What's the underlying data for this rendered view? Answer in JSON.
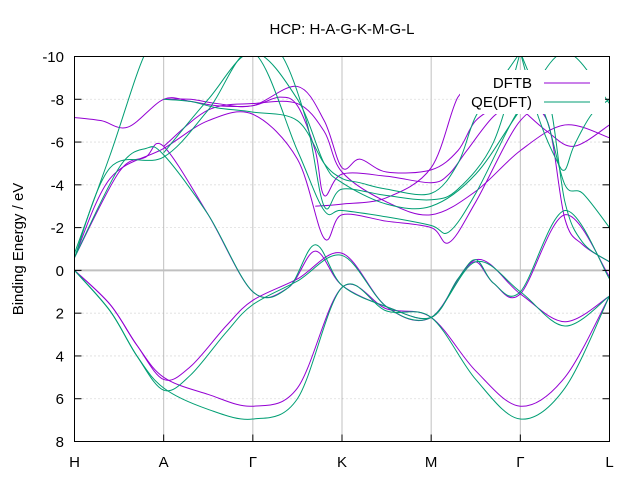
{
  "chart_data": {
    "type": "line",
    "title": "HCP: H-A-G-K-M-G-L",
    "xlabel": "",
    "ylabel": "Binding Energy / eV",
    "ylim": [
      8,
      -10
    ],
    "y_ticks": [
      -10,
      -8,
      -6,
      -4,
      -2,
      0,
      2,
      4,
      6,
      8
    ],
    "x_ticks": [
      {
        "label": "H",
        "x": 0
      },
      {
        "label": "A",
        "x": 1
      },
      {
        "label": "Γ",
        "x": 2
      },
      {
        "label": "K",
        "x": 3
      },
      {
        "label": "M",
        "x": 4
      },
      {
        "label": "Γ",
        "x": 5
      },
      {
        "label": "L",
        "x": 6
      }
    ],
    "xlim": [
      0,
      6
    ],
    "grid": true,
    "zero_line": 0,
    "legend_position": "top-right",
    "series": [
      {
        "name": "DFTB",
        "color": "#9400d3",
        "bands": [
          {
            "x": [
              0,
              0.4,
              0.7,
              1,
              1.5,
              2,
              2.5,
              3,
              3.5,
              4,
              4.5,
              5,
              5.5,
              6
            ],
            "y": [
              0,
              1.6,
              3.5,
              5,
              5.8,
              6.35,
              5.5,
              0.8,
              1.8,
              2.2,
              4.7,
              6.35,
              5.0,
              1.2
            ]
          },
          {
            "x": [
              0,
              0.4,
              0.7,
              1,
              1.3,
              1.7,
              2,
              2.5,
              3,
              3.5,
              4,
              4.5,
              5,
              5.5,
              6
            ],
            "y": [
              0,
              1.6,
              3.5,
              5.1,
              4.5,
              2.6,
              1.4,
              0.4,
              -0.8,
              1.7,
              2.2,
              -0.5,
              1.1,
              2.4,
              1.2
            ]
          },
          {
            "x": [
              0,
              0.5,
              0.8,
              1,
              1.5,
              2,
              2.4,
              2.7,
              3,
              3.5,
              4,
              4.3,
              4.5,
              4.7,
              5,
              5.5,
              6
            ],
            "y": [
              -0.6,
              -4.6,
              -5.3,
              -5.8,
              -2.6,
              1.0,
              0.8,
              -0.9,
              0.7,
              1.7,
              2.2,
              0.4,
              -0.4,
              0.6,
              1.1,
              -2.6,
              0.3
            ]
          },
          {
            "x": [
              0,
              0.4,
              1,
              1.5,
              2,
              2.5,
              2.8,
              3,
              3.5,
              4,
              4.2,
              4.5,
              5,
              5.3,
              5.5,
              5.7,
              6
            ],
            "y": [
              -0.6,
              -4.3,
              -5.7,
              -7.0,
              -7.3,
              -5.2,
              -1.5,
              -2.6,
              -2.3,
              -2.0,
              -1.3,
              -3.2,
              -7.0,
              -7.0,
              -2.4,
              -1.2,
              -0.4
            ]
          },
          {
            "x": [
              0,
              0.3,
              0.6,
              1,
              1.3,
              1.6,
              2,
              2.3,
              2.5,
              2.7,
              2.8,
              3,
              3.5,
              4,
              4.2,
              4.4,
              4.7,
              5
            ],
            "y": [
              -7.15,
              -7.0,
              -6.7,
              -8.0,
              -7.9,
              -7.7,
              -7.7,
              -8.1,
              -7.7,
              -5.6,
              -3.5,
              -4.5,
              -4.4,
              -4.1,
              -4.5,
              -5.6,
              -7.2,
              -8.0
            ]
          },
          {
            "x": [
              1,
              1.3,
              1.6,
              2,
              2.5,
              2.8,
              3,
              3.2,
              3.5,
              4,
              4.3,
              4.5,
              4.8,
              5
            ],
            "y": [
              -8.0,
              -8.0,
              -7.8,
              -7.7,
              -8.6,
              -7.0,
              -4.8,
              -5.2,
              -4.6,
              -4.7,
              -5.6,
              -7.0,
              -7.8,
              -8.2
            ]
          },
          {
            "x": [
              1,
              1.5,
              2,
              2.5,
              2.8,
              3,
              3.5,
              4,
              4.5,
              5,
              5.5,
              6
            ],
            "y": [
              -5.8,
              -7.5,
              -7.8,
              -7.8,
              -6.5,
              -4.6,
              -3.2,
              -2.6,
              -3.7,
              -5.6,
              -6.8,
              -6.2
            ]
          },
          {
            "x": [
              2.7,
              3,
              3.5,
              4,
              4.3,
              4.5
            ],
            "y": [
              -3.0,
              -3.1,
              -3.4,
              -4.8,
              -8.1,
              -8.2
            ]
          },
          {
            "x": [
              5,
              5.3,
              5.6,
              6
            ],
            "y": [
              -7.6,
              -6.5,
              -5.8,
              -6.8
            ]
          }
        ]
      },
      {
        "name": "QE(DFT)",
        "color": "#009e73",
        "bands": [
          {
            "x": [
              0,
              0.4,
              0.7,
              1,
              1.5,
              2,
              2.5,
              3,
              3.5,
              4,
              4.5,
              5,
              5.5,
              6
            ],
            "y": [
              0,
              1.9,
              4.0,
              5.5,
              6.5,
              6.95,
              6.0,
              0.8,
              1.9,
              2.2,
              5.1,
              6.95,
              5.5,
              1.2
            ]
          },
          {
            "x": [
              0,
              0.4,
              0.7,
              1,
              1.3,
              1.7,
              2,
              2.5,
              3,
              3.5,
              4,
              4.5,
              5,
              5.5,
              6
            ],
            "y": [
              0,
              1.9,
              4.0,
              5.6,
              4.9,
              2.9,
              1.6,
              0.5,
              -0.7,
              1.7,
              2.2,
              -0.4,
              1.0,
              2.6,
              1.2
            ]
          },
          {
            "x": [
              0,
              0.5,
              0.8,
              1,
              1.5,
              2,
              2.4,
              2.7,
              3,
              3.5,
              4,
              4.3,
              4.5,
              4.7,
              5,
              5.5,
              6
            ],
            "y": [
              -0.6,
              -4.8,
              -5.7,
              -5.4,
              -2.6,
              1.0,
              0.8,
              -1.2,
              0.7,
              1.7,
              2.2,
              0.4,
              -0.5,
              0.6,
              1.0,
              -2.8,
              0.4
            ]
          },
          {
            "x": [
              0,
              0.4,
              1,
              1.5,
              2,
              2.5,
              2.8,
              3,
              3.5,
              4,
              4.2,
              4.5,
              5,
              5.3,
              5.5,
              5.7,
              6
            ],
            "y": [
              -0.6,
              -4.8,
              -5.3,
              -7.5,
              -10.2,
              -5.6,
              -2.8,
              -2.8,
              -2.5,
              -2.1,
              -1.8,
              -3.6,
              -7.6,
              -8.2,
              -3.2,
              -1.3,
              -0.4
            ]
          },
          {
            "x": [
              0,
              0.4,
              0.8,
              1,
              1.3,
              1.6,
              2,
              2.3,
              2.6,
              2.8,
              3,
              3.5,
              4,
              4.3,
              4.7,
              5
            ],
            "y": [
              -0.8,
              -5.4,
              -10.2,
              -10.2,
              -10.2,
              -10.2,
              -10.2,
              -10.2,
              -7.0,
              -3.0,
              -3.8,
              -3.5,
              -3.3,
              -3.8,
              -6.0,
              -10.2
            ]
          },
          {
            "x": [
              1,
              1.3,
              1.6,
              2,
              2.5,
              2.8,
              3,
              3.2,
              3.5,
              4,
              4.3,
              4.5,
              4.8,
              5
            ],
            "y": [
              -8.0,
              -7.9,
              -7.6,
              -7.4,
              -7.0,
              -5.0,
              -4.3,
              -4.1,
              -3.8,
              -3.6,
              -5.0,
              -7.2,
              -9.0,
              -10.2
            ]
          },
          {
            "x": [
              1,
              1.5,
              2,
              2.5,
              2.8,
              3,
              3.5,
              4,
              4.5,
              5,
              5.5,
              6
            ],
            "y": [
              -5.5,
              -8.0,
              -10.2,
              -8.0,
              -5.0,
              -4.1,
              -3.1,
              -3.0,
              -4.5,
              -7.5,
              -10.2,
              -7.8
            ]
          },
          {
            "x": [
              5,
              5.2,
              5.4,
              5.5,
              5.6,
              5.8,
              6
            ],
            "y": [
              -10.2,
              -7.2,
              -5.2,
              -4.7,
              -5.8,
              -7.3,
              -8.0
            ]
          },
          {
            "x": [
              5,
              5.3,
              5.5,
              5.7,
              6
            ],
            "y": [
              -10.2,
              -7.0,
              -4.0,
              -3.6,
              -2.0
            ]
          }
        ]
      }
    ]
  }
}
